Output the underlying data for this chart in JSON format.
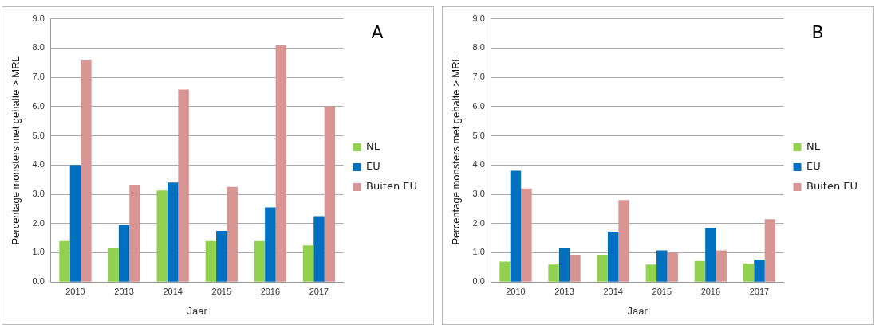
{
  "chart_data": [
    {
      "type": "bar",
      "annotations": [
        "A"
      ],
      "xlabel": "Jaar",
      "ylabel": "Percentage monsters met gehalte > MRL",
      "categories": [
        "2010",
        "2013",
        "2014",
        "2015",
        "2016",
        "2017"
      ],
      "series": [
        {
          "name": "NL",
          "color": "#92d050",
          "values": [
            1.4,
            1.15,
            3.13,
            1.4,
            1.4,
            1.25
          ]
        },
        {
          "name": "EU",
          "color": "#0070c0",
          "values": [
            4.0,
            1.95,
            3.4,
            1.75,
            2.55,
            2.25
          ]
        },
        {
          "name": "Buiten EU",
          "color": "#d99594",
          "values": [
            7.6,
            3.33,
            6.58,
            3.25,
            8.1,
            6.0
          ]
        }
      ],
      "ylim": [
        0,
        9
      ],
      "yticks": [
        {
          "value": 0,
          "label": "0.0"
        },
        {
          "value": 1,
          "label": "1.0"
        },
        {
          "value": 2,
          "label": "2.0"
        },
        {
          "value": 3,
          "label": "3.0"
        },
        {
          "value": 4,
          "label": "4.0"
        },
        {
          "value": 5,
          "label": "5.0"
        },
        {
          "value": 6,
          "label": "6.0"
        },
        {
          "value": 7,
          "label": "7.0"
        },
        {
          "value": 8,
          "label": "8.0"
        },
        {
          "value": 9,
          "label": "9.0"
        }
      ],
      "grid": "y",
      "legend": "right"
    },
    {
      "type": "bar",
      "annotations": [
        "B"
      ],
      "xlabel": "Jaar",
      "ylabel": "Percentage monsters met gehalte > MRL",
      "categories": [
        "2010",
        "2013",
        "2014",
        "2015",
        "2016",
        "2017"
      ],
      "series": [
        {
          "name": "NL",
          "color": "#92d050",
          "values": [
            0.7,
            0.6,
            0.93,
            0.6,
            0.72,
            0.63
          ]
        },
        {
          "name": "EU",
          "color": "#0070c0",
          "values": [
            3.8,
            1.15,
            1.72,
            1.08,
            1.85,
            0.77
          ]
        },
        {
          "name": "Buiten EU",
          "color": "#d99594",
          "values": [
            3.2,
            0.93,
            2.8,
            1.0,
            1.08,
            2.15
          ]
        }
      ],
      "ylim": [
        0,
        9
      ],
      "yticks": [
        {
          "value": 0,
          "label": "0.0"
        },
        {
          "value": 1,
          "label": "1.0"
        },
        {
          "value": 2,
          "label": "2.0"
        },
        {
          "value": 3,
          "label": "3.0"
        },
        {
          "value": 4,
          "label": "4.0"
        },
        {
          "value": 5,
          "label": "5.0"
        },
        {
          "value": 6,
          "label": "6.0"
        },
        {
          "value": 7,
          "label": "7.0"
        },
        {
          "value": 8,
          "label": "8.0"
        },
        {
          "value": 9,
          "label": "9.0"
        }
      ],
      "grid": "y",
      "legend": "right"
    }
  ]
}
